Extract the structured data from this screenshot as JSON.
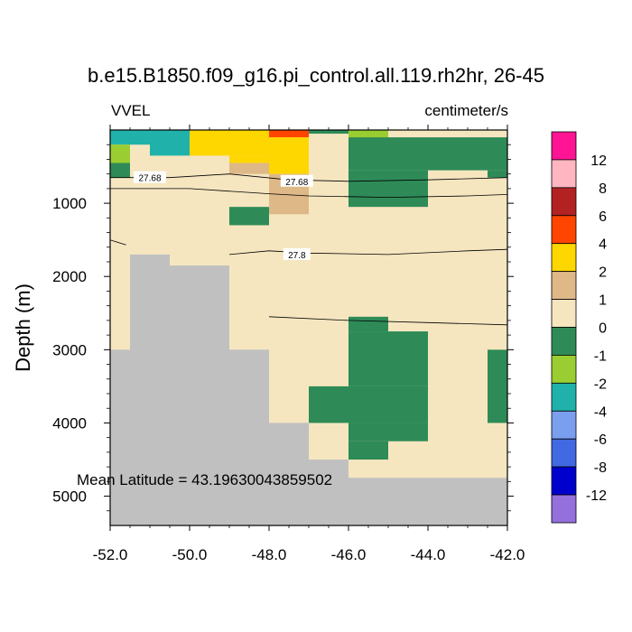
{
  "chart_data": {
    "type": "heatmap",
    "title": "b.e15.B1850.f09_g16.pi_control.all.119.rh2hr, 26-45",
    "left_string": "VVEL",
    "right_string": "centimeter/s",
    "ylabel": "Depth (m)",
    "xlabel": "",
    "xlim": [
      -52,
      -42
    ],
    "ylim": [
      5400,
      0
    ],
    "x_ticks": [
      -52,
      -50,
      -48,
      -46,
      -44,
      -42
    ],
    "x_tick_labels": [
      "-52.0",
      "-50.0",
      "-48.0",
      "-46.0",
      "-44.0",
      "-42.0"
    ],
    "y_ticks": [
      1000,
      2000,
      3000,
      4000,
      5000
    ],
    "y_tick_labels": [
      "1000",
      "2000",
      "3000",
      "4000",
      "5000"
    ],
    "annotation": "Mean Latitude = 43.19630043859502",
    "colorbar": {
      "levels": [
        "12",
        "8",
        "6",
        "4",
        "2",
        "1",
        "0",
        "-1",
        "-2",
        "-4",
        "-6",
        "-8",
        "-12"
      ],
      "colors": [
        "#ff1493",
        "#ffb6c1",
        "#b22222",
        "#ff4500",
        "#ffd700",
        "#deb887",
        "#f5e6c0",
        "#2e8b57",
        "#9acd32",
        "#20b2aa",
        "#7b9fef",
        "#4169e1",
        "#0000cd",
        "#9370db"
      ]
    },
    "colors": {
      "pos1": "#deb887",
      "pos2": "#ffd700",
      "pos4": "#ff4500",
      "zero": "#f5e6c0",
      "neg1": "#2e8b57",
      "neg2": "#9acd32",
      "neg4": "#20b2aa",
      "land": "#c0c0c0"
    },
    "cells": [
      {
        "x0": -52,
        "x1": -51.0,
        "d0": 0,
        "d1": 200,
        "c": "neg4"
      },
      {
        "x0": -51.0,
        "x1": -50.0,
        "d0": 0,
        "d1": 350,
        "c": "neg4"
      },
      {
        "x0": -52,
        "x1": -51.5,
        "d0": 200,
        "d1": 450,
        "c": "neg2"
      },
      {
        "x0": -52,
        "x1": -51.5,
        "d0": 450,
        "d1": 650,
        "c": "neg1"
      },
      {
        "x0": -50.0,
        "x1": -48.0,
        "d0": 0,
        "d1": 350,
        "c": "pos2"
      },
      {
        "x0": -49.0,
        "x1": -48.0,
        "d0": 350,
        "d1": 450,
        "c": "pos2"
      },
      {
        "x0": -49.0,
        "x1": -48.0,
        "d0": 450,
        "d1": 600,
        "c": "pos1"
      },
      {
        "x0": -48.0,
        "x1": -47.0,
        "d0": 0,
        "d1": 100,
        "c": "pos4"
      },
      {
        "x0": -48.0,
        "x1": -47.0,
        "d0": 100,
        "d1": 600,
        "c": "pos2"
      },
      {
        "x0": -48.0,
        "x1": -47.0,
        "d0": 600,
        "d1": 1150,
        "c": "pos1"
      },
      {
        "x0": -49.0,
        "x1": -48.0,
        "d0": 1050,
        "d1": 1300,
        "c": "neg1"
      },
      {
        "x0": -47.0,
        "x1": -46.0,
        "d0": 0,
        "d1": 50,
        "c": "neg1"
      },
      {
        "x0": -46.0,
        "x1": -45.0,
        "d0": 0,
        "d1": 150,
        "c": "neg2"
      },
      {
        "x0": -46.0,
        "x1": -42.0,
        "d0": 100,
        "d1": 550,
        "c": "neg1"
      },
      {
        "x0": -46.0,
        "x1": -44.0,
        "d0": 550,
        "d1": 1050,
        "c": "neg1"
      },
      {
        "x0": -42.5,
        "x1": -42.0,
        "d0": 550,
        "d1": 650,
        "c": "neg1"
      },
      {
        "x0": -46.0,
        "x1": -45.0,
        "d0": 2550,
        "d1": 2750,
        "c": "neg1"
      },
      {
        "x0": -46.0,
        "x1": -44.0,
        "d0": 2750,
        "d1": 3500,
        "c": "neg1"
      },
      {
        "x0": -47.0,
        "x1": -44.0,
        "d0": 3500,
        "d1": 4000,
        "c": "neg1"
      },
      {
        "x0": -46.0,
        "x1": -44.0,
        "d0": 4000,
        "d1": 4250,
        "c": "neg1"
      },
      {
        "x0": -46.0,
        "x1": -45.0,
        "d0": 4250,
        "d1": 4500,
        "c": "neg1"
      },
      {
        "x0": -42.5,
        "x1": -42.0,
        "d0": 3000,
        "d1": 4000,
        "c": "neg1"
      }
    ],
    "land": [
      {
        "x0": -52,
        "x1": -51.5,
        "d0": 3000,
        "d1": 5400
      },
      {
        "x0": -51.5,
        "x1": -50.5,
        "d0": 1700,
        "d1": 5400
      },
      {
        "x0": -50.5,
        "x1": -49.0,
        "d0": 1850,
        "d1": 5400
      },
      {
        "x0": -49.0,
        "x1": -48.0,
        "d0": 3000,
        "d1": 5400
      },
      {
        "x0": -48.0,
        "x1": -47.0,
        "d0": 4000,
        "d1": 5400
      },
      {
        "x0": -47.0,
        "x1": -46.0,
        "d0": 4500,
        "d1": 5400
      },
      {
        "x0": -46.0,
        "x1": -42.0,
        "d0": 4750,
        "d1": 5400
      }
    ],
    "contours": [
      {
        "label": "27.68",
        "label_x": -51.0,
        "label_d": 650,
        "points": [
          [
            -52,
            650
          ],
          [
            -50.5,
            650
          ],
          [
            -49.0,
            600
          ],
          [
            -47.5,
            680
          ],
          [
            -46.0,
            700
          ],
          [
            -44.0,
            680
          ],
          [
            -42.0,
            650
          ]
        ]
      },
      {
        "label": "27.68",
        "label_x": -47.3,
        "label_d": 700,
        "points": [
          [
            -52,
            800
          ],
          [
            -50.0,
            800
          ],
          [
            -48.0,
            870
          ],
          [
            -47.0,
            900
          ],
          [
            -45.0,
            920
          ],
          [
            -43.0,
            900
          ],
          [
            -42.0,
            880
          ]
        ]
      },
      {
        "label": "27.8",
        "label_x": -47.3,
        "label_d": 1700,
        "points": [
          [
            -49.0,
            1700
          ],
          [
            -48.0,
            1650
          ],
          [
            -47.0,
            1680
          ],
          [
            -45.0,
            1700
          ],
          [
            -43.0,
            1650
          ],
          [
            -42.0,
            1630
          ]
        ]
      },
      {
        "label": "",
        "label_x": null,
        "label_d": null,
        "points": [
          [
            -52,
            1500
          ],
          [
            -51.6,
            1570
          ]
        ]
      },
      {
        "label": "",
        "label_x": null,
        "label_d": null,
        "points": [
          [
            -48.0,
            2550
          ],
          [
            -46.0,
            2600
          ],
          [
            -44.0,
            2630
          ],
          [
            -42.0,
            2660
          ]
        ]
      }
    ]
  }
}
